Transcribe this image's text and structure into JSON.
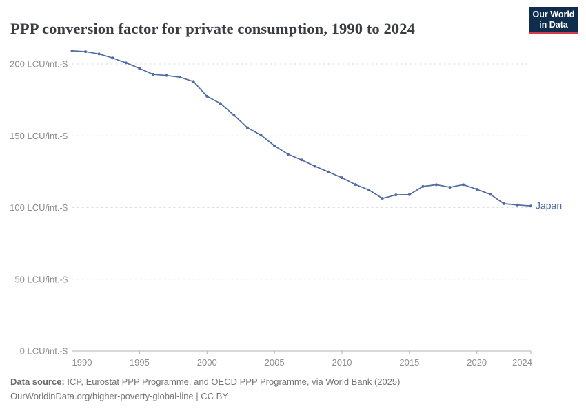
{
  "header": {
    "title": "PPP conversion factor for private consumption, 1990 to 2024"
  },
  "logo": {
    "line1": "Our World",
    "line2": "in Data"
  },
  "chart_data": {
    "type": "line",
    "title": "PPP conversion factor for private consumption, 1990 to 2024",
    "unit": "LCU/int.-$",
    "xlim": [
      1990,
      2024
    ],
    "ylim": [
      0,
      215
    ],
    "grid": "horizontal-dashed",
    "legend_position": "end-of-line-label",
    "x_ticks": [
      1990,
      1995,
      2000,
      2005,
      2010,
      2015,
      2020,
      2024
    ],
    "y_ticks": [
      {
        "value": 0,
        "label": "0 LCU/int.-$"
      },
      {
        "value": 50,
        "label": "50 LCU/int.-$"
      },
      {
        "value": 100,
        "label": "100 LCU/int.-$"
      },
      {
        "value": 150,
        "label": "150 LCU/int.-$"
      },
      {
        "value": 200,
        "label": "200 LCU/int.-$"
      }
    ],
    "x": [
      1990,
      1991,
      1992,
      1993,
      1994,
      1995,
      1996,
      1997,
      1998,
      1999,
      2000,
      2001,
      2002,
      2003,
      2004,
      2005,
      2006,
      2007,
      2008,
      2009,
      2010,
      2011,
      2012,
      2013,
      2014,
      2015,
      2016,
      2017,
      2018,
      2019,
      2020,
      2021,
      2022,
      2023,
      2024
    ],
    "series": [
      {
        "name": "Japan",
        "color": "#4e6ba3",
        "values": [
          209.2,
          208.6,
          207.0,
          204.2,
          200.8,
          196.9,
          192.8,
          192.0,
          190.8,
          187.8,
          177.5,
          172.5,
          164.4,
          155.6,
          150.5,
          143.0,
          137.2,
          133.2,
          128.8,
          124.8,
          120.8,
          116.0,
          112.3,
          106.4,
          108.8,
          109.0,
          114.7,
          115.9,
          114.1,
          115.9,
          112.7,
          109.2,
          102.7,
          101.8,
          101.1
        ]
      }
    ]
  },
  "footer": {
    "source_label": "Data source:",
    "source_text": " ICP, Eurostat PPP Programme, and OECD PPP Programme, via World Bank (2025)",
    "link": "OurWorldinData.org/higher-poverty-global-line",
    "separator": " | ",
    "license": "CC BY"
  },
  "colors": {
    "line": "#4e6ba3",
    "logo_bg": "#102d4e",
    "logo_accent": "#d93a4a",
    "gridline": "#dcdcdc",
    "axis": "#b3b3b3",
    "tick_text": "#8e8e8e"
  }
}
